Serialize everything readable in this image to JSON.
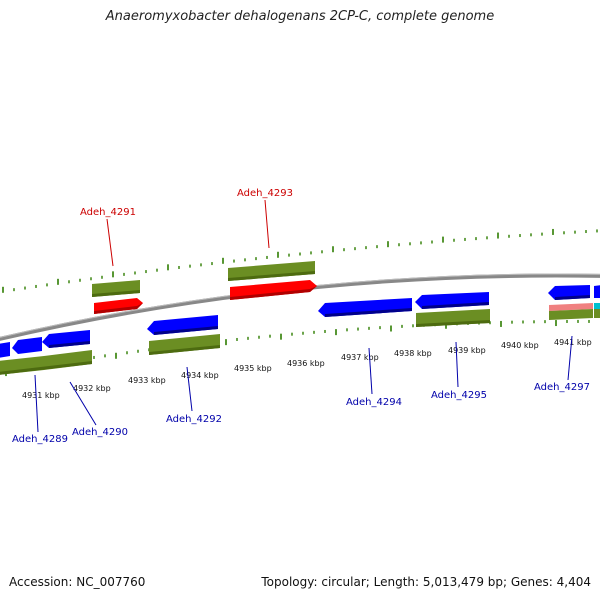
{
  "title": "Anaeromyxobacter dehalogenans 2CP-C, complete genome",
  "footer": {
    "accession": "Accession: NC_007760",
    "summary": "Topology: circular; Length: 5,013,479 bp; Genes: 4,404"
  },
  "colors": {
    "forward_cds": "#ff0000",
    "reverse_cds": "#0000ff",
    "gene": "#6b8e23",
    "backbone": "#888888",
    "tick": "#2e7d00",
    "label_forward": "#cc0000",
    "label_reverse": "#0000aa",
    "rna_a": "#f08080",
    "rna_b": "#00c0d0"
  },
  "kbp_labels": [
    "4931 kbp",
    "4932 kbp",
    "4933 kbp",
    "4934 kbp",
    "4935 kbp",
    "4936 kbp",
    "4937 kbp",
    "4938 kbp",
    "4939 kbp",
    "4940 kbp",
    "4941 kbp"
  ],
  "gene_labels": [
    {
      "text": "Adeh_4289",
      "strand": "reverse"
    },
    {
      "text": "Adeh_4290",
      "strand": "reverse"
    },
    {
      "text": "Adeh_4291",
      "strand": "forward"
    },
    {
      "text": "Adeh_4292",
      "strand": "reverse"
    },
    {
      "text": "Adeh_4293",
      "strand": "forward"
    },
    {
      "text": "Adeh_4294",
      "strand": "reverse"
    },
    {
      "text": "Adeh_4295",
      "strand": "reverse"
    },
    {
      "text": "Adeh_4297",
      "strand": "reverse"
    }
  ]
}
